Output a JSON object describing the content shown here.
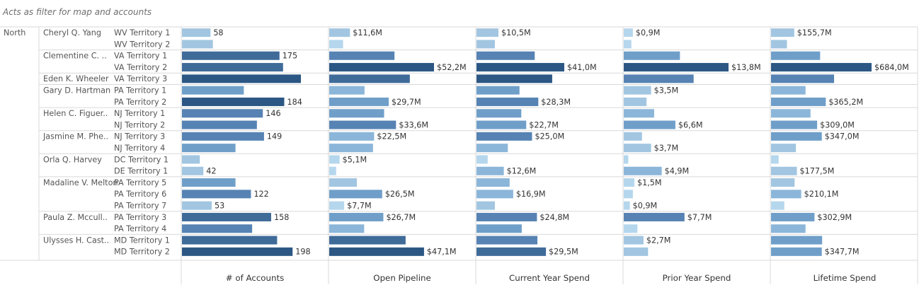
{
  "filter_note": "Acts as filter for map and accounts",
  "colors": {
    "bar_scale": [
      "#b5d7ed",
      "#a2c6e1",
      "#8bb6d9",
      "#6f9fc9",
      "#5683b3",
      "#3f6b99",
      "#2c5784"
    ],
    "gridline": "#d9d9d9"
  },
  "region": "North",
  "chart_data": {
    "type": "bar",
    "orientation": "horizontal",
    "measures": [
      "# of Accounts",
      "Open Pipeline",
      "Current Year Spend",
      "Prior Year Spend",
      "Lifetime Spend"
    ],
    "groups": [
      {
        "manager": "Cheryl Q. Yang",
        "label": "58",
        "rows": [
          {
            "territory": "WV Territory 1",
            "values": [
              24,
              5.4,
              4.9,
              0.6,
              70.0
            ],
            "labels": [
              "58",
              "$11,6M",
              "$10,5M",
              "$0,9M",
              "$155,7M"
            ]
          },
          {
            "territory": "WV Territory 2",
            "values": [
              26,
              3.6,
              4.1,
              0.5,
              48.0
            ],
            "labels": [
              "",
              "",
              "",
              "",
              ""
            ]
          }
        ]
      },
      {
        "manager": "Clementine C. ..",
        "rows": [
          {
            "territory": "VA Territory 1",
            "values": [
              82,
              17.0,
              13.0,
              3.7,
              148.0
            ],
            "labels": [
              "175",
              "",
              "",
              "",
              ""
            ]
          },
          {
            "territory": "VA Territory 2",
            "values": [
              85,
              27.3,
              19.6,
              6.9,
              303.0
            ],
            "labels": [
              "",
              "$52,2M",
              "$41,0M",
              "$13,8M",
              "$684,0M"
            ]
          }
        ]
      },
      {
        "manager": "Eden K. Wheeler",
        "rows": [
          {
            "territory": "VA Territory 3",
            "values": [
              100,
              21.0,
              16.9,
              4.6,
              190.0
            ],
            "labels": [
              "",
              "",
              "",
              "",
              ""
            ]
          }
        ]
      },
      {
        "manager": "Gary D. Hartman",
        "rows": [
          {
            "territory": "PA Territory 1",
            "values": [
              52,
              9.2,
              9.6,
              1.8,
              104.0
            ],
            "labels": [
              "",
              "",
              "",
              "$3,5M",
              ""
            ]
          },
          {
            "territory": "PA Territory 2",
            "values": [
              86,
              15.5,
              13.8,
              1.5,
              165.0
            ],
            "labels": [
              "184",
              "$29,7M",
              "$28,3M",
              "",
              "$365,2M"
            ]
          }
        ]
      },
      {
        "manager": "Helen C. Figuer..",
        "rows": [
          {
            "territory": "NJ Territory 1",
            "values": [
              68,
              14.3,
              10.0,
              2.0,
              119.0
            ],
            "labels": [
              "146",
              "",
              "",
              "",
              ""
            ]
          },
          {
            "territory": "NJ Territory 2",
            "values": [
              63,
              17.4,
              11.1,
              3.4,
              139.0
            ],
            "labels": [
              "",
              "$33,6M",
              "$22,7M",
              "$6,6M",
              "$309,0M"
            ]
          }
        ]
      },
      {
        "manager": "Jasmine M. Phe..",
        "rows": [
          {
            "territory": "NJ Territory 3",
            "values": [
              69,
              11.7,
              12.4,
              1.2,
              153.0
            ],
            "labels": [
              "149",
              "$22,5M",
              "$25,0M",
              "",
              "$347,0M"
            ]
          },
          {
            "territory": "NJ Territory 4",
            "values": [
              45,
              11.4,
              7.0,
              1.8,
              75.0
            ],
            "labels": [
              "",
              "",
              "",
              "$3,7M",
              ""
            ]
          }
        ]
      },
      {
        "manager": "Orla Q. Harvey",
        "rows": [
          {
            "territory": "DC Territory 1",
            "values": [
              15,
              2.7,
              2.5,
              0.3,
              23.0
            ],
            "labels": [
              "",
              "$5,1M",
              "",
              "",
              ""
            ]
          },
          {
            "territory": "DE Territory 1",
            "values": [
              18,
              1.8,
              6.1,
              2.5,
              78.0
            ],
            "labels": [
              "42",
              "",
              "$12,6M",
              "$4,9M",
              "$177,5M"
            ]
          }
        ]
      },
      {
        "manager": "Madaline V. Melton",
        "rows": [
          {
            "territory": "PA Territory 5",
            "values": [
              45,
              7.2,
              7.4,
              0.7,
              71.0
            ],
            "labels": [
              "",
              "",
              "",
              "$1,5M",
              ""
            ]
          },
          {
            "territory": "PA Territory 6",
            "values": [
              58,
              13.8,
              8.2,
              0.6,
              91.0
            ],
            "labels": [
              "122",
              "$26,5M",
              "$16,9M",
              "",
              "$210,1M"
            ]
          },
          {
            "territory": "PA Territory 7",
            "values": [
              25,
              3.9,
              4.1,
              0.4,
              40.0
            ],
            "labels": [
              "53",
              "$7,7M",
              "",
              "$0,9M",
              ""
            ]
          }
        ]
      },
      {
        "manager": "Paula Z. Mccull..",
        "rows": [
          {
            "territory": "PA Territory 3",
            "values": [
              75,
              14.1,
              13.5,
              4.0,
              131.0
            ],
            "labels": [
              "158",
              "$26,7M",
              "$24,8M",
              "$7,7M",
              "$302,9M"
            ]
          },
          {
            "territory": "PA Territory 4",
            "values": [
              59,
              9.1,
              10.1,
              0.9,
              104.0
            ],
            "labels": [
              "",
              "",
              "",
              "",
              ""
            ]
          }
        ]
      },
      {
        "manager": "Ulysses H. Cast..",
        "rows": [
          {
            "territory": "MD Territory 1",
            "values": [
              80,
              19.9,
              13.6,
              1.3,
              154.0
            ],
            "labels": [
              "",
              "",
              "",
              "$2,7M",
              ""
            ]
          },
          {
            "territory": "MD Territory 2",
            "values": [
              93,
              24.7,
              15.5,
              1.6,
              153.0
            ],
            "labels": [
              "198",
              "$47,1M",
              "$29,5M",
              "",
              "$347,7M"
            ]
          }
        ]
      }
    ]
  }
}
